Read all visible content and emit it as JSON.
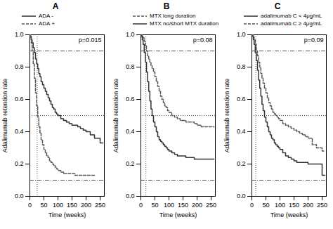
{
  "chart_data": [
    {
      "type": "step",
      "title": "A",
      "annotation": "p=0.015",
      "ylabel": "Adalimumab retention rate",
      "xlabel": "Time (weeks)",
      "xlim": [
        0,
        265
      ],
      "ylim": [
        0.0,
        1.0
      ],
      "xticks": [
        0,
        50,
        100,
        150,
        200,
        250
      ],
      "yticks": [
        {
          "value": 0.0,
          "label": "0.0"
        },
        0.2,
        0.4,
        0.6,
        0.8,
        {
          "value": 1.0,
          "label": "1.0"
        }
      ],
      "hlines": [
        {
          "y": 0.9,
          "line_style": "dashdot"
        },
        {
          "y": 0.1,
          "line_style": "dashdot"
        },
        {
          "y": 0.5,
          "line_style": "dotted"
        }
      ],
      "vlines": [
        {
          "x": 26,
          "line_style": "dotted"
        }
      ],
      "legend": "top",
      "series": [
        {
          "name": "ADA -",
          "color": "#333333",
          "line_style": "solid",
          "x": [
            0,
            2,
            5,
            8,
            12,
            16,
            20,
            24,
            28,
            32,
            36,
            40,
            45,
            50,
            55,
            60,
            65,
            70,
            75,
            80,
            85,
            90,
            95,
            100,
            110,
            120,
            130,
            140,
            150,
            160,
            170,
            180,
            190,
            200,
            215,
            230,
            250,
            260
          ],
          "values": [
            1.0,
            0.99,
            0.97,
            0.95,
            0.92,
            0.89,
            0.85,
            0.82,
            0.79,
            0.76,
            0.74,
            0.71,
            0.69,
            0.67,
            0.65,
            0.63,
            0.61,
            0.59,
            0.57,
            0.55,
            0.54,
            0.52,
            0.51,
            0.5,
            0.48,
            0.47,
            0.46,
            0.45,
            0.44,
            0.44,
            0.43,
            0.42,
            0.41,
            0.4,
            0.38,
            0.36,
            0.33,
            0.33
          ]
        },
        {
          "name": "ADA +",
          "color": "#555555",
          "line_style": "dashed",
          "x": [
            0,
            2,
            5,
            8,
            12,
            16,
            20,
            24,
            28,
            32,
            36,
            40,
            45,
            50,
            55,
            60,
            65,
            70,
            75,
            80,
            85,
            90,
            95,
            100,
            110,
            120,
            130,
            140,
            150,
            160,
            170,
            180,
            190,
            200,
            215,
            230
          ],
          "values": [
            1.0,
            0.98,
            0.95,
            0.9,
            0.82,
            0.73,
            0.64,
            0.56,
            0.49,
            0.43,
            0.39,
            0.35,
            0.32,
            0.29,
            0.27,
            0.25,
            0.24,
            0.22,
            0.21,
            0.2,
            0.19,
            0.18,
            0.17,
            0.16,
            0.15,
            0.14,
            0.14,
            0.14,
            0.14,
            0.13,
            0.13,
            0.13,
            0.13,
            0.13,
            0.13,
            0.13
          ]
        }
      ]
    },
    {
      "type": "step",
      "title": "B",
      "annotation": "p=0.08",
      "ylabel": "Adalimumab retention rate",
      "xlabel": "Time (weeks)",
      "xlim": [
        0,
        265
      ],
      "ylim": [
        0.0,
        1.0
      ],
      "xticks": [
        0,
        50,
        100,
        150,
        200,
        250
      ],
      "yticks": [
        {
          "value": 0.0,
          "label": "0.0"
        },
        0.2,
        0.4,
        0.6,
        0.8,
        {
          "value": 1.0,
          "label": "1.0"
        }
      ],
      "hlines": [
        {
          "y": 0.9,
          "line_style": "dashdot"
        },
        {
          "y": 0.1,
          "line_style": "dashdot"
        },
        {
          "y": 0.5,
          "line_style": "dotted"
        }
      ],
      "vlines": [
        {
          "x": 18,
          "line_style": "dotted"
        }
      ],
      "legend": "top",
      "series": [
        {
          "name": "MTX long duration",
          "color": "#555555",
          "line_style": "dashed",
          "x": [
            0,
            2,
            5,
            8,
            12,
            16,
            20,
            24,
            28,
            32,
            36,
            40,
            45,
            50,
            55,
            60,
            65,
            70,
            75,
            80,
            85,
            90,
            95,
            100,
            110,
            120,
            130,
            140,
            150,
            160,
            170,
            180,
            190,
            200,
            215,
            230,
            250,
            260
          ],
          "values": [
            1.0,
            1.0,
            0.99,
            0.98,
            0.96,
            0.93,
            0.9,
            0.87,
            0.85,
            0.83,
            0.81,
            0.79,
            0.77,
            0.74,
            0.71,
            0.68,
            0.65,
            0.62,
            0.6,
            0.58,
            0.56,
            0.55,
            0.53,
            0.52,
            0.5,
            0.49,
            0.48,
            0.47,
            0.47,
            0.46,
            0.46,
            0.46,
            0.45,
            0.44,
            0.43,
            0.43,
            0.43,
            0.43
          ]
        },
        {
          "name": "MTX no/short MTX duration",
          "color": "#333333",
          "line_style": "solid",
          "x": [
            0,
            2,
            5,
            8,
            12,
            16,
            20,
            24,
            28,
            32,
            36,
            40,
            45,
            50,
            55,
            60,
            65,
            70,
            75,
            80,
            85,
            90,
            95,
            100,
            110,
            120,
            130,
            140,
            150,
            160,
            170,
            180,
            190,
            200,
            215,
            230,
            250,
            260
          ],
          "values": [
            1.0,
            0.99,
            0.97,
            0.94,
            0.89,
            0.83,
            0.77,
            0.71,
            0.65,
            0.59,
            0.54,
            0.5,
            0.46,
            0.43,
            0.4,
            0.37,
            0.35,
            0.34,
            0.33,
            0.32,
            0.31,
            0.3,
            0.29,
            0.28,
            0.27,
            0.26,
            0.25,
            0.25,
            0.25,
            0.24,
            0.24,
            0.24,
            0.23,
            0.23,
            0.23,
            0.23,
            0.23,
            0.23
          ]
        }
      ]
    },
    {
      "type": "step",
      "title": "C",
      "annotation": "p=0.09",
      "ylabel": "Adalimumab retention rate",
      "xlabel": "Time (weeks)",
      "xlim": [
        0,
        265
      ],
      "ylim": [
        0.0,
        1.0
      ],
      "xticks": [
        0,
        50,
        100,
        150,
        200,
        250
      ],
      "yticks": [
        {
          "value": 0.0,
          "label": "0.0"
        },
        0.2,
        0.4,
        0.6,
        0.8,
        {
          "value": 1.0,
          "label": "1.0"
        }
      ],
      "hlines": [
        {
          "y": 0.9,
          "line_style": "dashdot"
        },
        {
          "y": 0.1,
          "line_style": "dashdot"
        },
        {
          "y": 0.5,
          "line_style": "dotted"
        }
      ],
      "vlines": [
        {
          "x": 14,
          "line_style": "dotted"
        }
      ],
      "legend": "top",
      "series": [
        {
          "name": "adalimumab C < 4μg/mL",
          "color": "#333333",
          "line_style": "solid",
          "x": [
            0,
            2,
            5,
            8,
            12,
            16,
            20,
            24,
            28,
            32,
            36,
            40,
            45,
            50,
            55,
            60,
            65,
            70,
            75,
            80,
            85,
            90,
            95,
            100,
            110,
            120,
            130,
            140,
            150,
            160,
            170,
            180,
            190,
            200,
            215,
            230,
            250,
            260
          ],
          "values": [
            1.0,
            0.99,
            0.97,
            0.94,
            0.89,
            0.84,
            0.78,
            0.72,
            0.67,
            0.62,
            0.57,
            0.53,
            0.49,
            0.46,
            0.43,
            0.4,
            0.38,
            0.36,
            0.35,
            0.33,
            0.32,
            0.31,
            0.3,
            0.29,
            0.27,
            0.25,
            0.24,
            0.23,
            0.22,
            0.21,
            0.21,
            0.21,
            0.21,
            0.2,
            0.2,
            0.2,
            0.13,
            0.13
          ]
        },
        {
          "name": "adalimumab C ≥ 4μg/mL",
          "color": "#555555",
          "line_style": "dashed",
          "x": [
            0,
            2,
            5,
            8,
            12,
            16,
            20,
            24,
            28,
            32,
            36,
            40,
            45,
            50,
            55,
            60,
            65,
            70,
            75,
            80,
            85,
            90,
            95,
            100,
            110,
            120,
            130,
            140,
            150,
            160,
            170,
            180,
            190,
            200,
            215,
            230,
            250,
            260
          ],
          "values": [
            1.0,
            1.0,
            0.99,
            0.97,
            0.94,
            0.9,
            0.87,
            0.83,
            0.8,
            0.76,
            0.73,
            0.7,
            0.67,
            0.64,
            0.61,
            0.58,
            0.56,
            0.54,
            0.52,
            0.51,
            0.5,
            0.49,
            0.48,
            0.47,
            0.45,
            0.44,
            0.43,
            0.42,
            0.41,
            0.4,
            0.39,
            0.38,
            0.37,
            0.36,
            0.32,
            0.3,
            0.28,
            0.28
          ]
        }
      ]
    }
  ]
}
